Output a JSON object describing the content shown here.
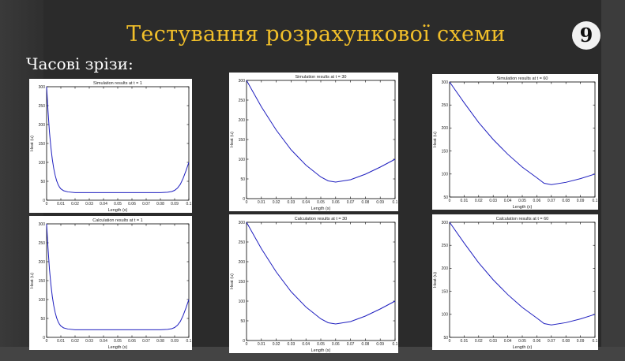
{
  "slide": {
    "title": "Тестування розрахункової схеми",
    "page_number": "9",
    "section_label": "Часові зрізи:"
  },
  "colors": {
    "title": "#f1bf2a",
    "curve": "#1f1fbf",
    "background": "#2b2b2b"
  },
  "chart_data": [
    {
      "type": "line",
      "title": "Simulation results at t = 1",
      "xlabel": "Length (x)",
      "ylabel": "Heat (u)",
      "xlim": [
        0,
        0.1
      ],
      "ylim": [
        0,
        300
      ],
      "xticks": [
        0,
        0.01,
        0.02,
        0.03,
        0.04,
        0.05,
        0.06,
        0.07,
        0.08,
        0.09,
        0.1
      ],
      "xtick_labels": [
        "0",
        "0.01",
        "0.02",
        "0.03",
        "0.04",
        "0.05",
        "0.06",
        "0.07",
        "0.08",
        "0.09",
        "0.1"
      ],
      "yticks": [
        0,
        50,
        100,
        150,
        200,
        250,
        300
      ],
      "series": [
        {
          "x": [
            0,
            0.001,
            0.002,
            0.003,
            0.004,
            0.005,
            0.006,
            0.007,
            0.008,
            0.009,
            0.01,
            0.012,
            0.015,
            0.02,
            0.03,
            0.04,
            0.05,
            0.06,
            0.07,
            0.08,
            0.085,
            0.088,
            0.09,
            0.092,
            0.094,
            0.096,
            0.098,
            0.1
          ],
          "y": [
            300,
            235,
            180,
            140,
            108,
            84,
            66,
            52,
            42,
            35,
            30,
            25,
            22,
            20,
            20,
            20,
            20,
            20,
            20,
            20,
            21,
            23,
            26,
            32,
            42,
            58,
            78,
            100
          ]
        }
      ]
    },
    {
      "type": "line",
      "title": "Simulation results at t = 30",
      "xlabel": "Length (x)",
      "ylabel": "Heat (u)",
      "xlim": [
        0,
        0.1
      ],
      "ylim": [
        0,
        300
      ],
      "xticks": [
        0,
        0.01,
        0.02,
        0.03,
        0.04,
        0.05,
        0.06,
        0.07,
        0.08,
        0.09,
        0.1
      ],
      "xtick_labels": [
        "0",
        "0.01",
        "0.02",
        "0.03",
        "0.04",
        "0.05",
        "0.06",
        "0.07",
        "0.08",
        "0.09",
        "0.1"
      ],
      "yticks": [
        0,
        50,
        100,
        150,
        200,
        250,
        300
      ],
      "series": [
        {
          "x": [
            0,
            0.01,
            0.02,
            0.03,
            0.04,
            0.05,
            0.055,
            0.06,
            0.07,
            0.08,
            0.09,
            0.1
          ],
          "y": [
            300,
            233,
            174,
            124,
            85,
            55,
            45,
            42,
            48,
            62,
            80,
            100
          ]
        }
      ]
    },
    {
      "type": "line",
      "title": "Simulation results at t = 60",
      "xlabel": "Length (x)",
      "ylabel": "Heat (u)",
      "xlim": [
        0,
        0.1
      ],
      "ylim": [
        50,
        300
      ],
      "xticks": [
        0,
        0.01,
        0.02,
        0.03,
        0.04,
        0.05,
        0.06,
        0.07,
        0.08,
        0.09,
        0.1
      ],
      "xtick_labels": [
        "0",
        "0.01",
        "0.02",
        "0.03",
        "0.04",
        "0.05",
        "0.06",
        "0.07",
        "0.08",
        "0.09",
        "0.1"
      ],
      "yticks": [
        50,
        100,
        150,
        200,
        250,
        300
      ],
      "series": [
        {
          "x": [
            0,
            0.01,
            0.02,
            0.03,
            0.04,
            0.05,
            0.06,
            0.065,
            0.07,
            0.08,
            0.09,
            0.1
          ],
          "y": [
            300,
            255,
            212,
            175,
            143,
            115,
            92,
            80,
            77,
            82,
            90,
            100
          ]
        }
      ]
    },
    {
      "type": "line",
      "title": "Calculation results at t = 1",
      "xlabel": "Length (x)",
      "ylabel": "Heat (u)",
      "xlim": [
        0,
        0.1
      ],
      "ylim": [
        0,
        300
      ],
      "xticks": [
        0,
        0.01,
        0.02,
        0.03,
        0.04,
        0.05,
        0.06,
        0.07,
        0.08,
        0.09,
        0.1
      ],
      "xtick_labels": [
        "0",
        "0.01",
        "0.02",
        "0.03",
        "0.04",
        "0.05",
        "0.06",
        "0.07",
        "0.08",
        "0.09",
        "0.1"
      ],
      "yticks": [
        0,
        50,
        100,
        150,
        200,
        250,
        300
      ],
      "series": [
        {
          "x": [
            0,
            0.001,
            0.002,
            0.003,
            0.004,
            0.005,
            0.006,
            0.007,
            0.008,
            0.009,
            0.01,
            0.012,
            0.015,
            0.02,
            0.03,
            0.04,
            0.05,
            0.06,
            0.07,
            0.08,
            0.085,
            0.088,
            0.09,
            0.092,
            0.094,
            0.096,
            0.098,
            0.1
          ],
          "y": [
            300,
            235,
            180,
            140,
            108,
            84,
            66,
            52,
            42,
            35,
            30,
            25,
            22,
            20,
            20,
            20,
            20,
            20,
            20,
            20,
            21,
            23,
            26,
            32,
            42,
            58,
            78,
            100
          ]
        }
      ]
    },
    {
      "type": "line",
      "title": "Calculation results at t = 30",
      "xlabel": "Length (x)",
      "ylabel": "Heat (u)",
      "xlim": [
        0,
        0.1
      ],
      "ylim": [
        0,
        300
      ],
      "xticks": [
        0,
        0.01,
        0.02,
        0.03,
        0.04,
        0.05,
        0.06,
        0.07,
        0.08,
        0.09,
        0.1
      ],
      "xtick_labels": [
        "0",
        "0.01",
        "0.02",
        "0.03",
        "0.04",
        "0.05",
        "0.06",
        "0.07",
        "0.08",
        "0.09",
        "0.1"
      ],
      "yticks": [
        0,
        50,
        100,
        150,
        200,
        250,
        300
      ],
      "series": [
        {
          "x": [
            0,
            0.01,
            0.02,
            0.03,
            0.04,
            0.05,
            0.055,
            0.06,
            0.07,
            0.08,
            0.09,
            0.1
          ],
          "y": [
            300,
            233,
            174,
            124,
            85,
            55,
            45,
            42,
            48,
            62,
            80,
            100
          ]
        }
      ]
    },
    {
      "type": "line",
      "title": "Calculation results at t = 60",
      "xlabel": "Length (x)",
      "ylabel": "Heat (u)",
      "xlim": [
        0,
        0.1
      ],
      "ylim": [
        50,
        300
      ],
      "xticks": [
        0,
        0.01,
        0.02,
        0.03,
        0.04,
        0.05,
        0.06,
        0.07,
        0.08,
        0.09,
        0.1
      ],
      "xtick_labels": [
        "0",
        "0.01",
        "0.02",
        "0.03",
        "0.04",
        "0.05",
        "0.06",
        "0.07",
        "0.08",
        "0.09",
        "0.1"
      ],
      "yticks": [
        50,
        100,
        150,
        200,
        250,
        300
      ],
      "series": [
        {
          "x": [
            0,
            0.01,
            0.02,
            0.03,
            0.04,
            0.05,
            0.06,
            0.065,
            0.07,
            0.08,
            0.09,
            0.1
          ],
          "y": [
            300,
            255,
            212,
            175,
            143,
            115,
            92,
            80,
            77,
            82,
            90,
            100
          ]
        }
      ]
    }
  ]
}
